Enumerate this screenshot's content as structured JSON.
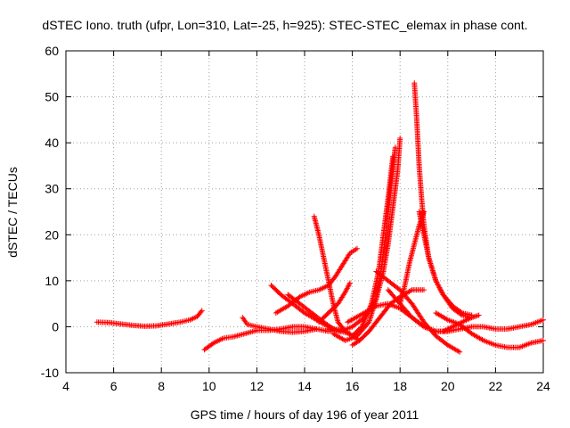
{
  "chart_data": {
    "type": "scatter",
    "title": "dSTEC Iono. truth (ufpr, Lon=310, Lat=-25, h=925): STEC-STEC_elemax in phase cont.",
    "xlabel": "GPS time / hours of day 196 of year 2011",
    "ylabel": "dSTEC  / TECUs",
    "xlim": [
      4,
      24
    ],
    "ylim": [
      -10,
      60
    ],
    "xticks": [
      "4",
      "6",
      "8",
      "10",
      "12",
      "14",
      "16",
      "18",
      "20",
      "22",
      "24"
    ],
    "yticks": [
      "-10",
      "0",
      "10",
      "20",
      "30",
      "40",
      "50",
      "60"
    ],
    "grid": true,
    "marker": "+",
    "color": "#ff0000",
    "series": [
      {
        "x": [
          5.3,
          5.8,
          6.3,
          6.8,
          7.3,
          7.8,
          8.3,
          8.8,
          9.2,
          9.5,
          9.7
        ],
        "y": [
          1.0,
          0.9,
          0.6,
          0.3,
          0.1,
          0.2,
          0.6,
          1.0,
          1.5,
          2.2,
          3.5
        ]
      },
      {
        "x": [
          9.8,
          10.2,
          10.6,
          11.0,
          11.5,
          12.0,
          12.5,
          13.0,
          13.5,
          14.0,
          14.5,
          15.0,
          15.5
        ],
        "y": [
          -5.0,
          -3.5,
          -2.5,
          -2.2,
          -1.5,
          -0.8,
          -0.8,
          -0.5,
          0.0,
          0.0,
          -0.5,
          -1.0,
          -0.5
        ]
      },
      {
        "x": [
          11.4,
          11.6,
          12.0,
          12.5,
          13.0,
          13.5,
          14.0,
          14.5
        ],
        "y": [
          2.0,
          0.5,
          0.0,
          -0.5,
          -1.0,
          -1.2,
          -1.0,
          -0.5
        ]
      },
      {
        "x": [
          12.6,
          13.0,
          13.5,
          14.0,
          14.5,
          15.0,
          15.5,
          15.9
        ],
        "y": [
          9.0,
          7.0,
          5.0,
          3.0,
          1.5,
          0.0,
          -1.0,
          -1.5
        ]
      },
      {
        "x": [
          13.3,
          13.8,
          14.3,
          14.8,
          15.2,
          15.5
        ],
        "y": [
          7.0,
          5.0,
          3.0,
          1.0,
          -0.5,
          -1.0
        ]
      },
      {
        "x": [
          12.8,
          13.3,
          13.8,
          14.2,
          14.6,
          15.0,
          15.3,
          15.6,
          15.9,
          16.2
        ],
        "y": [
          3.0,
          4.5,
          6.5,
          7.5,
          8.0,
          9.0,
          11.0,
          13.5,
          16.0,
          17.0
        ]
      },
      {
        "x": [
          14.4,
          14.6,
          14.8,
          15.0,
          15.2,
          15.4,
          15.7,
          16.0,
          16.3
        ],
        "y": [
          24.0,
          20.0,
          15.0,
          10.0,
          5.0,
          1.0,
          -1.0,
          -2.0,
          -3.0
        ]
      },
      {
        "x": [
          14.6,
          15.0,
          15.4,
          15.7,
          15.9
        ],
        "y": [
          1.0,
          3.0,
          5.0,
          7.5,
          9.5
        ]
      },
      {
        "x": [
          15.0,
          15.5,
          16.0,
          16.5,
          17.0,
          17.3,
          17.5,
          17.7,
          17.9,
          18.0
        ],
        "y": [
          -0.5,
          -1.0,
          0.0,
          2.0,
          6.0,
          12.0,
          18.0,
          26.0,
          34.0,
          41.0
        ]
      },
      {
        "x": [
          15.2,
          15.7,
          16.2,
          16.7,
          17.0,
          17.2,
          17.4,
          17.6,
          17.8
        ],
        "y": [
          -1.5,
          -3.0,
          -2.0,
          1.0,
          6.0,
          12.0,
          20.0,
          30.0,
          39.0
        ]
      },
      {
        "x": [
          16.0,
          16.4,
          16.8,
          17.1,
          17.3,
          17.5,
          17.7
        ],
        "y": [
          -2.0,
          0.0,
          5.0,
          12.0,
          20.0,
          28.0,
          37.0
        ]
      },
      {
        "x": [
          16.0,
          16.3,
          16.7,
          17.0,
          17.3,
          17.6,
          18.0,
          18.5,
          19.0
        ],
        "y": [
          -4.0,
          -3.0,
          -1.0,
          1.0,
          3.0,
          5.0,
          6.5,
          8.0,
          8.0
        ]
      },
      {
        "x": [
          18.6,
          18.7,
          18.8,
          18.9,
          19.0,
          19.2,
          19.5,
          19.8,
          20.2,
          20.6,
          21.0
        ],
        "y": [
          53.0,
          45.0,
          35.0,
          28.0,
          22.0,
          15.0,
          10.0,
          7.0,
          4.5,
          3.0,
          2.5
        ]
      },
      {
        "x": [
          18.8,
          19.0,
          19.2,
          19.5,
          19.8,
          20.2,
          20.6,
          21.0,
          21.3
        ],
        "y": [
          25.0,
          20.0,
          15.0,
          10.0,
          7.0,
          4.0,
          2.5,
          2.0,
          2.5
        ]
      },
      {
        "x": [
          18.0,
          18.2,
          18.4,
          18.6,
          18.8,
          19.0
        ],
        "y": [
          5.0,
          9.0,
          14.0,
          18.0,
          22.0,
          25.0
        ]
      },
      {
        "x": [
          17.0,
          17.5,
          18.0,
          18.5,
          19.0,
          19.5,
          20.0,
          20.5
        ],
        "y": [
          12.0,
          10.0,
          8.0,
          5.0,
          1.0,
          -2.0,
          -4.0,
          -5.5
        ]
      },
      {
        "x": [
          15.8,
          16.5,
          17.0,
          17.5,
          18.0,
          18.5,
          19.0,
          19.5,
          20.0
        ],
        "y": [
          1.0,
          3.0,
          4.5,
          5.0,
          4.0,
          2.0,
          0.0,
          -1.0,
          -1.0
        ]
      },
      {
        "x": [
          17.5,
          18.0,
          18.5,
          19.0,
          19.5,
          20.0,
          20.5,
          21.0,
          21.5,
          22.0,
          22.5,
          23.0,
          23.5,
          24.0
        ],
        "y": [
          8.0,
          5.0,
          2.0,
          0.0,
          -1.0,
          -1.0,
          -0.5,
          0.0,
          0.0,
          -0.5,
          -0.5,
          0.0,
          0.5,
          1.5
        ]
      },
      {
        "x": [
          19.5,
          20.0,
          20.5,
          21.0,
          21.5,
          22.0,
          22.5,
          23.0,
          23.5,
          24.0
        ],
        "y": [
          3.0,
          1.5,
          0.5,
          -1.5,
          -3.0,
          -4.0,
          -4.5,
          -4.5,
          -3.5,
          -3.0
        ]
      },
      {
        "x": [
          19.8,
          20.2,
          20.6,
          21.0
        ],
        "y": [
          -1.0,
          0.0,
          1.0,
          2.0
        ]
      }
    ]
  }
}
